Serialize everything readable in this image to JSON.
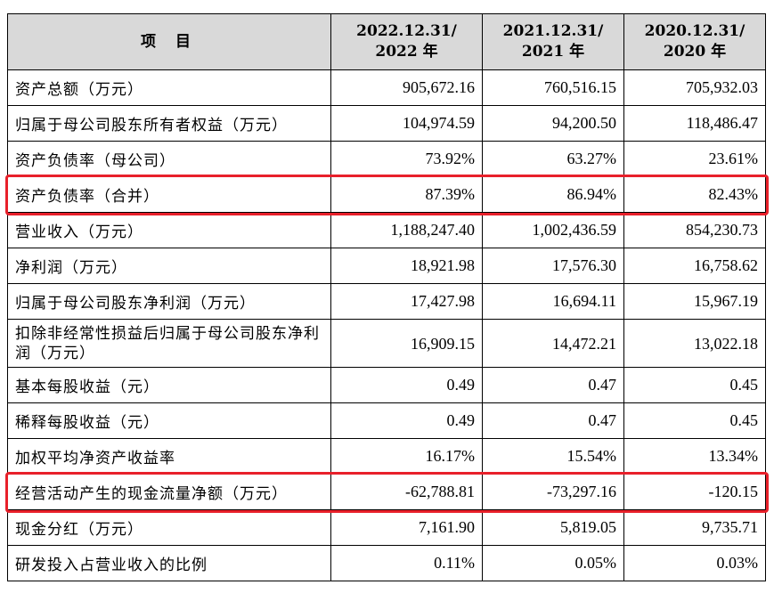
{
  "table": {
    "header": {
      "item": "项  目",
      "col1_line1": "2022.12.31/",
      "col1_line2": "2022 年",
      "col2_line1": "2021.12.31/",
      "col2_line2": "2021 年",
      "col3_line1": "2020.12.31/",
      "col3_line2": "2020 年"
    },
    "rows": [
      {
        "label": "资产总额（万元）",
        "v2022": "905,672.16",
        "v2021": "760,516.15",
        "v2020": "705,932.03"
      },
      {
        "label": "归属于母公司股东所有者权益（万元）",
        "v2022": "104,974.59",
        "v2021": "94,200.50",
        "v2020": "118,486.47"
      },
      {
        "label": "资产负债率（母公司）",
        "v2022": "73.92%",
        "v2021": "63.27%",
        "v2020": "23.61%"
      },
      {
        "label": "资产负债率（合并）",
        "v2022": "87.39%",
        "v2021": "86.94%",
        "v2020": "82.43%"
      },
      {
        "label": "营业收入（万元）",
        "v2022": "1,188,247.40",
        "v2021": "1,002,436.59",
        "v2020": "854,230.73"
      },
      {
        "label": "净利润（万元）",
        "v2022": "18,921.98",
        "v2021": "17,576.30",
        "v2020": "16,758.62"
      },
      {
        "label": "归属于母公司股东净利润（万元）",
        "v2022": "17,427.98",
        "v2021": "16,694.11",
        "v2020": "15,967.19"
      },
      {
        "label": "扣除非经常性损益后归属于母公司股东净利润（万元）",
        "v2022": "16,909.15",
        "v2021": "14,472.21",
        "v2020": "13,022.18"
      },
      {
        "label": "基本每股收益（元）",
        "v2022": "0.49",
        "v2021": "0.47",
        "v2020": "0.45"
      },
      {
        "label": "稀释每股收益（元）",
        "v2022": "0.49",
        "v2021": "0.47",
        "v2020": "0.45"
      },
      {
        "label": "加权平均净资产收益率",
        "v2022": "16.17%",
        "v2021": "15.54%",
        "v2020": "13.34%"
      },
      {
        "label": "经营活动产生的现金流量净额（万元）",
        "v2022": "-62,788.81",
        "v2021": "-73,297.16",
        "v2020": "-120.15"
      },
      {
        "label": "现金分红（万元）",
        "v2022": "7,161.90",
        "v2021": "5,819.05",
        "v2020": "9,735.71"
      },
      {
        "label": "研发投入占营业收入的比例",
        "v2022": "0.11%",
        "v2021": "0.05%",
        "v2020": "0.03%"
      }
    ]
  },
  "highlights": {
    "color": "#e8202a",
    "rows": [
      "资产负债率（合并）",
      "经营活动产生的现金流量净额（万元）"
    ]
  }
}
